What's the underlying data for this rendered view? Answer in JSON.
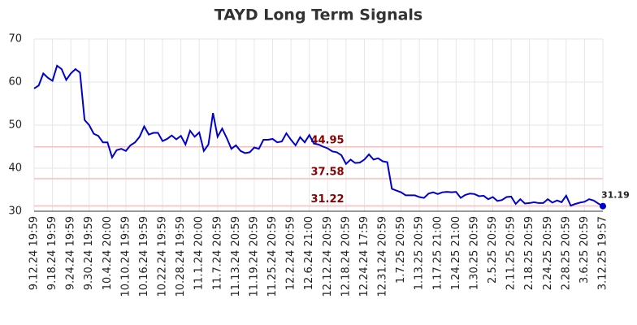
{
  "chart_data": {
    "type": "line",
    "title": "TAYD Long Term Signals",
    "categories": [
      "9.12.24 19:59",
      null,
      null,
      null,
      "9.18.24 19:59",
      null,
      null,
      null,
      "9.24.24 19:59",
      null,
      null,
      null,
      "9.30.24 19:59",
      null,
      null,
      null,
      "10.4.24 20:00",
      null,
      null,
      null,
      "10.10.24 19:59",
      null,
      null,
      null,
      "10.16.24 19:59",
      null,
      null,
      null,
      "10.22.24 19:59",
      null,
      null,
      null,
      "10.28.24 19:59",
      null,
      null,
      null,
      "11.1.24 20:00",
      null,
      null,
      null,
      "11.7.24 20:59",
      null,
      null,
      null,
      "11.13.24 20:59",
      null,
      null,
      null,
      "11.19.24 20:59",
      null,
      null,
      null,
      "11.25.24 20:59",
      null,
      null,
      null,
      "12.2.24 20:59",
      null,
      null,
      null,
      "12.6.24 21:00",
      null,
      null,
      null,
      "12.12.24 20:59",
      null,
      null,
      null,
      "12.18.24 20:59",
      null,
      null,
      null,
      "12.24.24 17:59",
      null,
      null,
      null,
      "12.31.24 20:59",
      null,
      null,
      null,
      "1.7.25 20:59",
      null,
      null,
      null,
      "1.13.25 20:59",
      null,
      null,
      null,
      "1.17.25 21:00",
      null,
      null,
      null,
      "1.24.25 21:00",
      null,
      null,
      null,
      "1.30.25 20:59",
      null,
      null,
      null,
      "2.5.25 20:59",
      null,
      null,
      null,
      "2.11.25 20:59",
      null,
      null,
      null,
      "2.18.25 20:59",
      null,
      null,
      null,
      "2.24.25 20:59",
      null,
      null,
      null,
      "2.28.25 20:59",
      null,
      null,
      null,
      "3.6.25 20:59",
      null,
      null,
      null,
      "3.12.25 19:57"
    ],
    "series": [
      {
        "color": "#0000cc",
        "values": [
          58.5,
          59.2,
          62,
          61,
          60.3,
          63.8,
          63,
          60.5,
          62,
          63,
          62.2,
          51.2,
          50,
          48,
          47.5,
          46,
          46,
          42.5,
          44.2,
          44.5,
          44,
          45.3,
          46,
          47.3,
          49.7,
          47.8,
          48.2,
          48.2,
          46.3,
          46.8,
          47.6,
          46.7,
          47.5,
          45.5,
          48.7,
          47.3,
          48.3,
          44,
          45.5,
          52.8,
          47.3,
          49.2,
          47,
          44.5,
          45.3,
          44,
          43.5,
          43.7,
          44.8,
          44.5,
          46.6,
          46.6,
          46.8,
          46,
          46.2,
          48.1,
          46.6,
          45.3,
          47.2,
          46,
          47.7,
          45.7,
          45.5,
          45,
          44.6,
          43.9,
          43.7,
          43,
          41,
          42,
          41.2,
          41.3,
          42,
          43.2,
          42,
          42.3,
          41.6,
          41.4,
          35.2,
          34.8,
          34.4,
          33.7,
          33.7,
          33.7,
          33.3,
          33.1,
          34.1,
          34.4,
          34,
          34.4,
          34.5,
          34.4,
          34.5,
          33.1,
          33.8,
          34.1,
          34,
          33.5,
          33.6,
          32.8,
          33.3,
          32.4,
          32.6,
          33.3,
          33.4,
          31.7,
          32.8,
          31.8,
          31.9,
          32.1,
          31.9,
          31.9,
          32.8,
          32,
          32.5,
          32.1,
          33.6,
          31.3,
          31.7,
          32,
          32.2,
          32.8,
          32.5,
          31.8,
          31.19
        ]
      }
    ],
    "levels": [
      44.95,
      37.58,
      31.22
    ],
    "level_color": "#ffbbbb",
    "level_label_color": "#8b0000",
    "ylim": [
      30,
      70
    ],
    "yticks": [
      30,
      40,
      50,
      60,
      70
    ],
    "grid": true
  }
}
